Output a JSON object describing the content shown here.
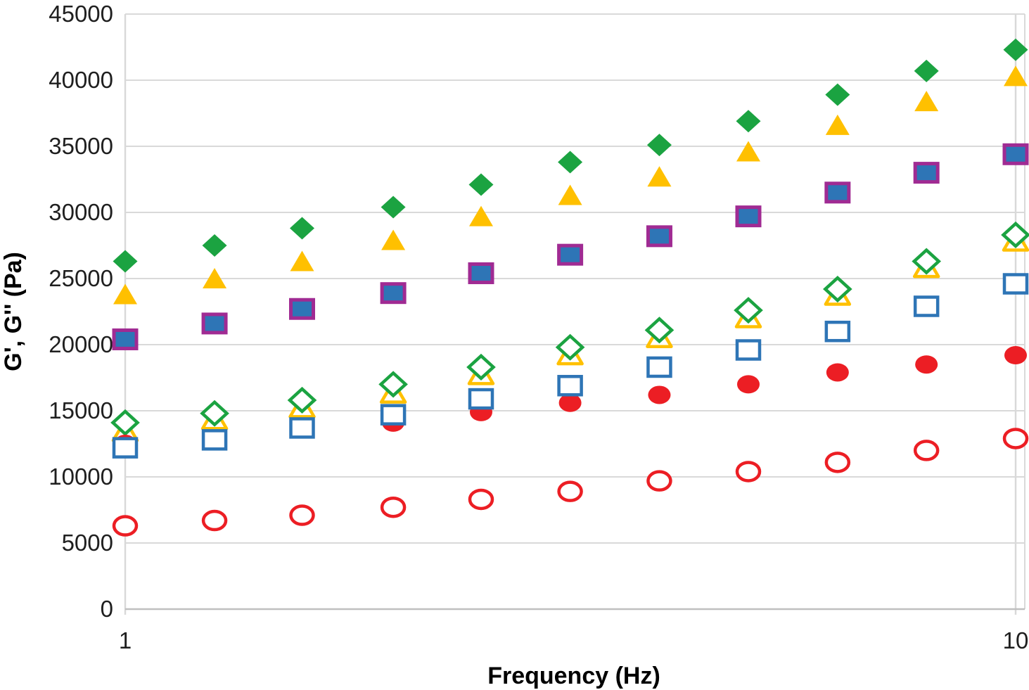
{
  "chart_data": {
    "type": "scatter",
    "title": "",
    "xlabel": "Frequency (Hz)",
    "ylabel": "G', G'' (Pa)",
    "x_scale": "log",
    "x_range": [
      1,
      10
    ],
    "x_tick_values": [
      1,
      10
    ],
    "x_tick_labels": [
      "1",
      "10"
    ],
    "y_range": [
      0,
      45000
    ],
    "y_tick_step": 5000,
    "y_tick_values": [
      0,
      5000,
      10000,
      15000,
      20000,
      25000,
      30000,
      35000,
      40000,
      45000
    ],
    "y_tick_labels": [
      "0",
      "5000",
      "10000",
      "15000",
      "20000",
      "25000",
      "30000",
      "35000",
      "40000",
      "45000"
    ],
    "grid": true,
    "legend": "none",
    "grid_color": "#D9D9D9",
    "axis_color": "#BFBFBF",
    "x": [
      1.0,
      1.26,
      1.58,
      2.0,
      2.51,
      3.16,
      3.98,
      5.01,
      6.31,
      7.94,
      10.0
    ],
    "series": [
      {
        "name": "filled-green-diamond",
        "marker": "diamond",
        "open": false,
        "fill": "#1BA341",
        "stroke": "#1BA341",
        "values": [
          26300,
          27500,
          28800,
          30400,
          32100,
          33800,
          35100,
          36900,
          38900,
          40700,
          42300
        ]
      },
      {
        "name": "filled-gold-triangle",
        "marker": "triangle",
        "open": false,
        "fill": "#FFC000",
        "stroke": "#FFC000",
        "values": [
          23800,
          25000,
          26300,
          27900,
          29700,
          31300,
          32700,
          34600,
          36600,
          38400,
          40300
        ]
      },
      {
        "name": "filled-blue-square-purple-border",
        "marker": "square",
        "open": false,
        "fill": "#2E75B6",
        "stroke": "#A02B93",
        "values": [
          20400,
          21600,
          22700,
          23900,
          25400,
          26800,
          28200,
          29700,
          31500,
          33000,
          34400
        ]
      },
      {
        "name": "open-gold-triangle",
        "marker": "triangle",
        "open": true,
        "fill": "#FFFFFF",
        "stroke": "#FFC000",
        "values": [
          13500,
          14400,
          15300,
          16400,
          17800,
          19300,
          20600,
          22100,
          23800,
          25900,
          27900
        ]
      },
      {
        "name": "open-green-diamond",
        "marker": "diamond",
        "open": true,
        "fill": "#FFFFFF",
        "stroke": "#1BA341",
        "values": [
          14100,
          14800,
          15800,
          17000,
          18300,
          19800,
          21100,
          22600,
          24200,
          26300,
          28300
        ]
      },
      {
        "name": "filled-red-circle",
        "marker": "circle",
        "open": false,
        "fill": "#EC1E24",
        "stroke": "#EC1E24",
        "values": [
          12500,
          12800,
          13600,
          14100,
          14900,
          15600,
          16200,
          17000,
          17900,
          18500,
          19200
        ]
      },
      {
        "name": "open-blue-square",
        "marker": "square",
        "open": true,
        "fill": "#FFFFFF",
        "stroke": "#2E75B6",
        "values": [
          12200,
          12800,
          13700,
          14700,
          15900,
          16900,
          18300,
          19600,
          21000,
          22900,
          24600
        ]
      },
      {
        "name": "open-red-circle",
        "marker": "circle",
        "open": true,
        "fill": "#FFFFFF",
        "stroke": "#EC1E24",
        "values": [
          6300,
          6700,
          7100,
          7700,
          8300,
          8900,
          9700,
          10400,
          11100,
          12000,
          12900
        ]
      }
    ]
  },
  "layout_note": "frequency sweep scatter plot, markers only, no legend shown"
}
